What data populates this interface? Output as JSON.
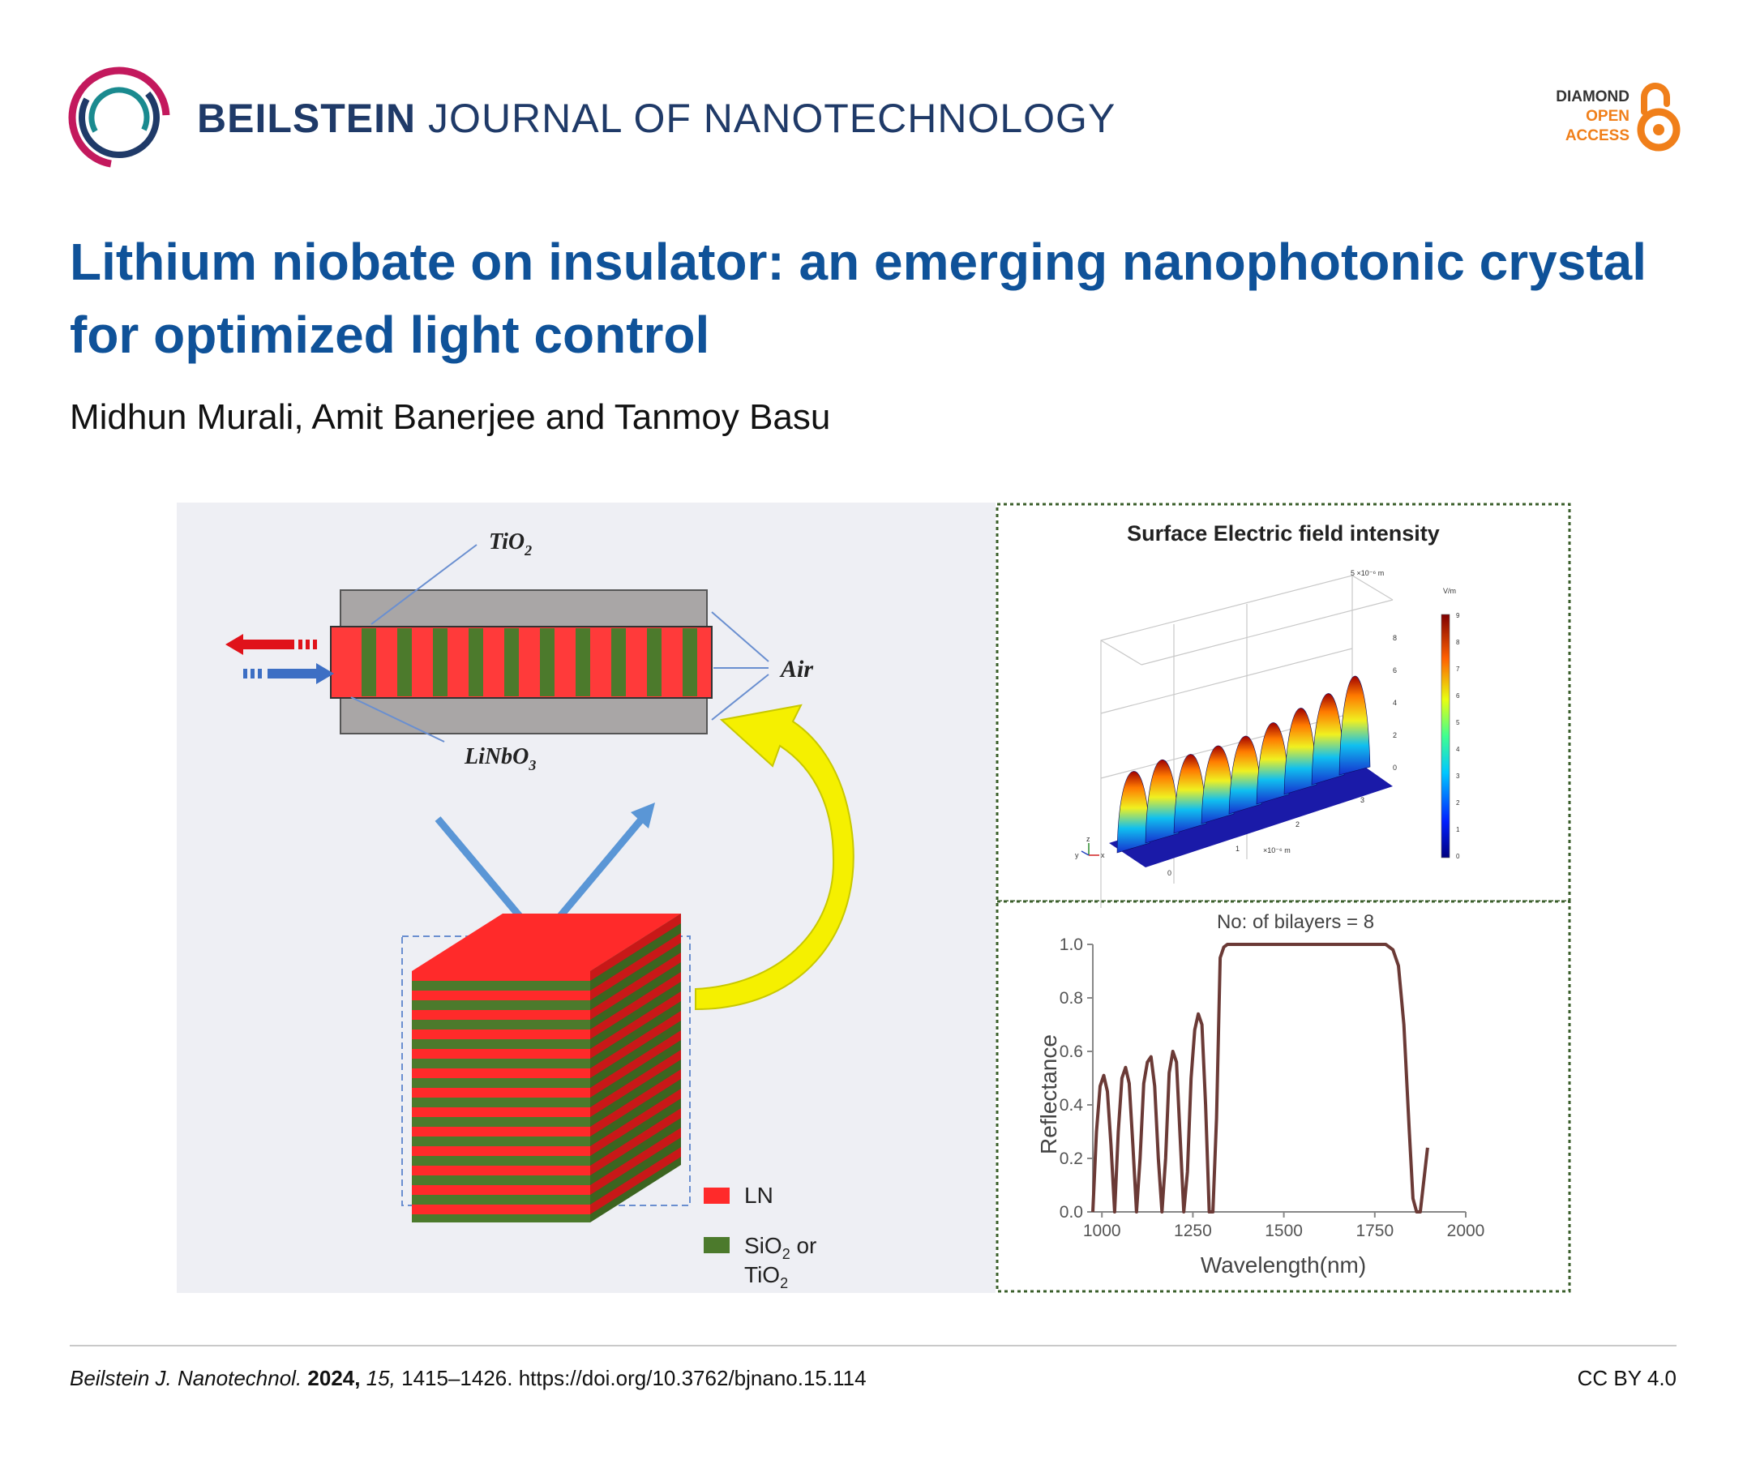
{
  "header": {
    "journal_bold": "BEILSTEIN",
    "journal_rest": "JOURNAL OF NANOTECHNOLOGY",
    "open_access": [
      "DIAMOND",
      "OPEN",
      "ACCESS"
    ],
    "colors": {
      "journal": "#1f3a68",
      "oa_dark": "#333333",
      "oa_orange": "#f07f1a"
    }
  },
  "article": {
    "title": "Lithium niobate on insulator: an emerging nanophotonic crystal for optimized light control",
    "authors": "Midhun Murali, Amit Banerjee and Tanmoy Basu"
  },
  "figure": {
    "left_panel": {
      "labels": {
        "tio2": "TiO",
        "tio2_sub": "2",
        "air": "Air",
        "linbo3": "LiNbO",
        "linbo3_sub": "3"
      },
      "legend": [
        {
          "label": "LN",
          "color": "#ff2a2a"
        },
        {
          "label": "SiO",
          "sub": "2",
          "tail": " or",
          "line2": "TiO",
          "line2_sub": "2",
          "color": "#4c7a2c"
        }
      ]
    },
    "surface_plot": {
      "title": "Surface Electric field intensity",
      "colorbar_unit": "V/m",
      "colorbar_ticks": [
        "9",
        "8",
        "7",
        "6",
        "5",
        "4",
        "3",
        "2",
        "1",
        "0"
      ],
      "z_ticks": [
        "8",
        "6",
        "4",
        "2",
        "0"
      ],
      "z_scale": "5 ×10⁻⁶ m",
      "x_ticks": [
        "0",
        "1",
        "2",
        "3"
      ],
      "x_scale": "×10⁻⁶ m",
      "axes_glyph": [
        "z",
        "y",
        "x"
      ]
    },
    "reflectance_plot": {
      "title": "No: of bilayers = 8",
      "xlabel": "Wavelength(nm)",
      "ylabel": "Reflectance"
    }
  },
  "footer": {
    "journal_abbr": "Beilstein J. Nanotechnol.",
    "year": "2024,",
    "volume": "15,",
    "pages_doi": "1415–1426. https://doi.org/10.3762/bjnano.15.114",
    "license": "CC BY 4.0"
  },
  "chart_data": {
    "type": "line",
    "title": "No: of bilayers = 8",
    "xlabel": "Wavelength(nm)",
    "ylabel": "Reflectance",
    "xlim": [
      975,
      2000
    ],
    "ylim": [
      0.0,
      1.0
    ],
    "xticks": [
      1000,
      1250,
      1500,
      1750,
      2000
    ],
    "xtick_labels": [
      "1000",
      "1250",
      "1500",
      "1750",
      "2000"
    ],
    "yticks": [
      0.0,
      0.2,
      0.4,
      0.6,
      0.8,
      1.0
    ],
    "ytick_labels": [
      "0.0",
      "0.2",
      "0.4",
      "0.6",
      "0.8",
      "1.0"
    ],
    "series": [
      {
        "name": "Reflectance",
        "color": "#6b3a36",
        "x": [
          975,
          985,
          995,
          1005,
          1015,
          1025,
          1035,
          1045,
          1055,
          1065,
          1075,
          1085,
          1095,
          1105,
          1115,
          1125,
          1135,
          1145,
          1155,
          1165,
          1175,
          1185,
          1195,
          1205,
          1215,
          1225,
          1235,
          1245,
          1255,
          1265,
          1275,
          1285,
          1295,
          1305,
          1315,
          1325,
          1335,
          1345,
          1360,
          1400,
          1500,
          1600,
          1700,
          1780,
          1800,
          1815,
          1830,
          1845,
          1855,
          1865,
          1875,
          1885,
          1895
        ],
        "y": [
          0.0,
          0.3,
          0.47,
          0.51,
          0.45,
          0.25,
          0.0,
          0.3,
          0.5,
          0.54,
          0.48,
          0.25,
          0.0,
          0.2,
          0.48,
          0.56,
          0.58,
          0.47,
          0.2,
          0.0,
          0.2,
          0.52,
          0.6,
          0.56,
          0.28,
          0.0,
          0.15,
          0.5,
          0.68,
          0.74,
          0.7,
          0.4,
          0.0,
          0.0,
          0.35,
          0.95,
          0.99,
          1.0,
          1.0,
          1.0,
          1.0,
          1.0,
          1.0,
          1.0,
          0.98,
          0.92,
          0.7,
          0.3,
          0.05,
          0.0,
          0.0,
          0.12,
          0.24
        ]
      }
    ]
  }
}
